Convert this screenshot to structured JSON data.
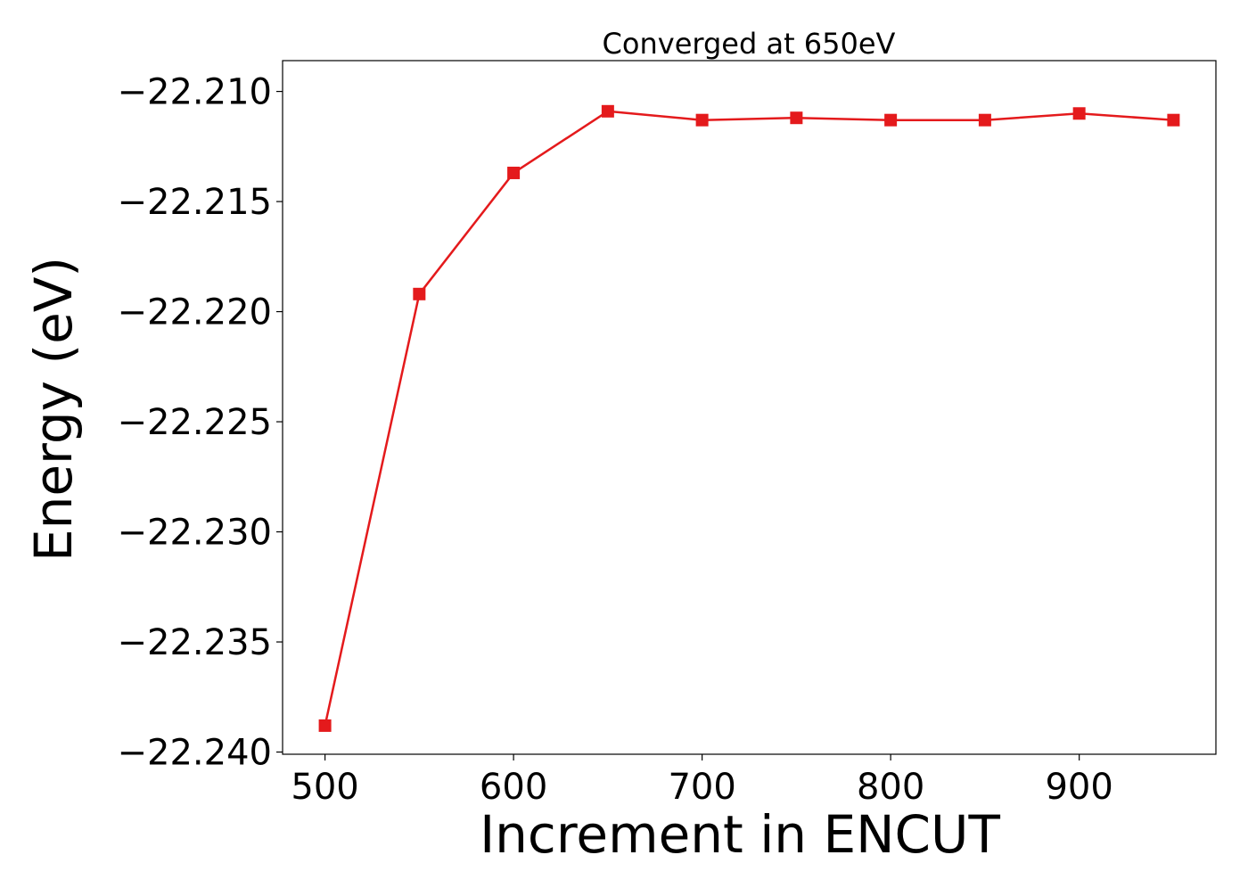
{
  "chart_data": {
    "type": "line",
    "title": "Converged at 650eV",
    "xlabel": "Increment in ENCUT",
    "ylabel": "Energy (eV)",
    "xlim": [
      477.5,
      972.5
    ],
    "ylim": [
      -22.2401,
      -22.2086
    ],
    "x_ticks": [
      500,
      600,
      700,
      800,
      900
    ],
    "x_tick_labels": [
      "500",
      "600",
      "700",
      "800",
      "900"
    ],
    "y_ticks": [
      -22.21,
      -22.215,
      -22.22,
      -22.225,
      -22.23,
      -22.235,
      -22.24
    ],
    "y_tick_labels": [
      "−22.210",
      "−22.215",
      "−22.220",
      "−22.225",
      "−22.230",
      "−22.235",
      "−22.240"
    ],
    "grid": false,
    "series": [
      {
        "x": [
          500,
          550,
          600,
          650,
          700,
          750,
          800,
          850,
          900,
          950
        ],
        "values": [
          -22.2388,
          -22.2192,
          -22.2137,
          -22.2109,
          -22.2113,
          -22.2112,
          -22.2113,
          -22.2113,
          -22.211,
          -22.2113
        ],
        "color": "#e41a1c",
        "marker": "square"
      }
    ]
  }
}
